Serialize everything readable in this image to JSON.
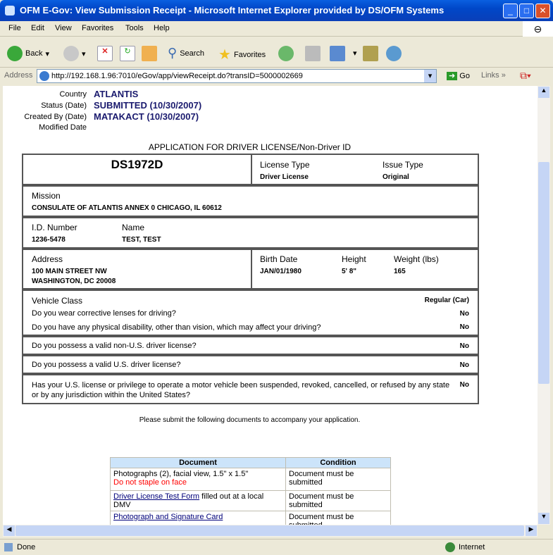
{
  "window": {
    "title": "OFM E-Gov: View Submission Receipt - Microsoft Internet Explorer provided by DS/OFM Systems"
  },
  "menu": [
    "File",
    "Edit",
    "View",
    "Favorites",
    "Tools",
    "Help"
  ],
  "toolbar": {
    "back": "Back",
    "search": "Search",
    "favorites": "Favorites"
  },
  "address": {
    "label": "Address",
    "url": "http://192.168.1.96:7010/eGov/app/viewReceipt.do?transID=5000002669",
    "go": "Go",
    "links": "Links"
  },
  "meta": [
    {
      "label": "Country",
      "value": "ATLANTIS"
    },
    {
      "label": "Status (Date)",
      "value": "SUBMITTED (10/30/2007)"
    },
    {
      "label": "Created By (Date)",
      "value": "MATAKACT (10/30/2007)"
    },
    {
      "label": "Modified Date",
      "value": ""
    }
  ],
  "form": {
    "title": "APPLICATION FOR DRIVER LICENSE/Non-Driver ID",
    "form_id": "DS1972D",
    "license_type_label": "License Type",
    "license_type": "Driver License",
    "issue_type_label": "Issue Type",
    "issue_type": "Original",
    "mission_label": "Mission",
    "mission": "CONSULATE OF ATLANTIS ANNEX 0 CHICAGO, IL 60612",
    "id_label": "I.D. Number",
    "id": "1236-5478",
    "name_label": "Name",
    "name": "TEST, TEST",
    "address_label": "Address",
    "address1": "100 MAIN STREET NW",
    "address2": "WASHINGTON, DC 20008",
    "birth_label": "Birth Date",
    "birth": "JAN/01/1980",
    "height_label": "Height",
    "height": "5' 8\"",
    "weight_label": "Weight (lbs)",
    "weight": "165",
    "vehicle_label": "Vehicle Class",
    "vehicle": "Regular (Car)",
    "questions": [
      {
        "q": "Do you wear corrective lenses for driving?",
        "a": "No"
      },
      {
        "q": "Do you have any physical disability, other than vision, which may affect your driving?",
        "a": "No"
      },
      {
        "q": "Do you possess a valid non-U.S. driver license?",
        "a": "No"
      },
      {
        "q": "Do you possess a valid U.S. driver license?",
        "a": "No"
      },
      {
        "q": "Has your U.S. license or privilege to operate a motor vehicle been suspended, revoked, cancelled, or refused by any state or by any jurisdiction within the United States?",
        "a": "No"
      }
    ]
  },
  "docs": {
    "intro": "Please submit the following documents to accompany your application.",
    "headers": [
      "Document",
      "Condition"
    ],
    "rows": [
      {
        "doc": "Photographs (2), facial view, 1.5\" x 1.5\"",
        "note": "Do not staple on face",
        "cond": "Document must be submitted"
      },
      {
        "link": "Driver License Test Form",
        "doc": " filled out at a local DMV",
        "cond": "Document must be submitted"
      },
      {
        "link": "Photograph and Signature Card",
        "cond": "Document must be submitted"
      }
    ]
  },
  "status": {
    "text": "Done",
    "zone": "Internet"
  }
}
